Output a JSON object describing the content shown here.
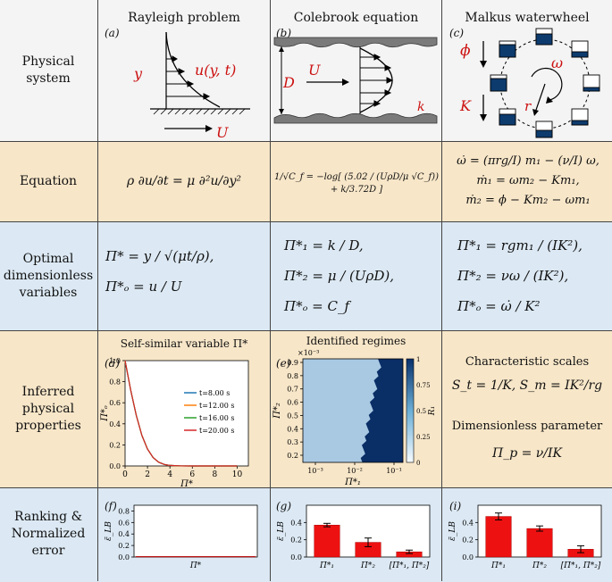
{
  "columns": [
    "Rayleigh problem",
    "Colebrook equation",
    "Malkus waterwheel"
  ],
  "rows": [
    "Physical system",
    "Equation",
    "Optimal dimensionless variables",
    "Inferred physical properties",
    "Ranking & Normalized error"
  ],
  "panel_labels": [
    "(a)",
    "(b)",
    "(c)",
    "(d)",
    "(e)",
    "(f)",
    "(g)",
    "(i)"
  ],
  "colors": {
    "top_bg": "#f4f4f4",
    "equation_bg": "#f7e6c8",
    "variables_bg": "#dce9f4",
    "inferred_bg": "#f7e6c8",
    "ranking_bg": "#dce9f4",
    "accent_red": "#cc1111"
  },
  "physical": {
    "rayleigh": {
      "y": "y",
      "u": "u(y, t)",
      "U": "U"
    },
    "colebrook": {
      "D": "D",
      "U": "U",
      "k": "k"
    },
    "malkus": {
      "phi": "ϕ",
      "omega": "ω",
      "K": "K",
      "r": "r"
    }
  },
  "equations": {
    "rayleigh": [
      "ρ ∂u/∂t = μ ∂²u/∂y²"
    ],
    "colebrook": [
      "1/√C_f = −log[ (5.02 / (UρD/μ √C_f)) + k/3.72D ]"
    ],
    "malkus": [
      "ω̇ = (πrg/I) m₁ − (ν/I) ω,",
      "ṁ₁ = ωm₂ − Km₁,",
      "ṁ₂ = ϕ − Km₂ − ωm₁"
    ]
  },
  "variables": {
    "rayleigh": [
      "Π* = y / √(μt/ρ),",
      "Π*ₒ = u / U"
    ],
    "colebrook": [
      "Π*₁ = k / D,",
      "Π*₂ = μ / (UρD),",
      "Π*ₒ = C_f"
    ],
    "malkus": [
      "Π*₁ = rgm₁ / (IK²),",
      "Π*₂ = νω / (IK²),",
      "Π*ₒ = ω̇ / K²"
    ]
  },
  "inferred": {
    "rayleigh_title": "Self-similar variable Π*",
    "colebrook_title": "Identified regimes",
    "colebrook_exp": "×10⁻³",
    "colebrook_cbar_label": "R₁",
    "colebrook_xlabel": "Π*₁",
    "colebrook_ylabel": "Π*₂",
    "malkus_title1": "Characteristic scales",
    "malkus_scales": "S_t = 1/K,  S_m = IK²/rg",
    "malkus_title2": "Dimensionless parameter",
    "malkus_param": "Π_p = ν/IK"
  },
  "chart_data": [
    {
      "type": "line",
      "xlabel": "Π*",
      "ylabel": "Π*ₒ",
      "xlim": [
        0,
        11
      ],
      "ylim": [
        0,
        1
      ],
      "xticks": [
        "0",
        "2",
        "4",
        "6",
        "8",
        "10"
      ],
      "yticks": [
        "0.0",
        "0.2",
        "0.4",
        "0.6",
        "0.8",
        "1.0"
      ],
      "legend_placement": "right",
      "series": [
        {
          "name": "t=8.00 s",
          "color": "#1f77b4"
        },
        {
          "name": "t=12.00 s",
          "color": "#ff7f0e"
        },
        {
          "name": "t=16.00 s",
          "color": "#2ca02c"
        },
        {
          "name": "t=20.00 s",
          "color": "#d62728"
        }
      ],
      "x": [
        0,
        0.5,
        1,
        1.5,
        2,
        2.5,
        3,
        3.5,
        4,
        5,
        6,
        8,
        10
      ],
      "y": [
        1.0,
        0.72,
        0.48,
        0.29,
        0.16,
        0.08,
        0.035,
        0.014,
        0.005,
        0.0005,
        0,
        0,
        0
      ]
    },
    {
      "type": "heatmap",
      "xlabel": "Π*₁",
      "ylabel": "Π*₂",
      "xticks": [
        "10⁻³",
        "10⁻²",
        "10⁻¹"
      ],
      "yticks": [
        "0.2",
        "0.3",
        "0.4",
        "0.5",
        "0.6",
        "0.7",
        "0.8",
        "0.9"
      ],
      "colorbar_ticks": [
        "0",
        "0.25",
        "0.5",
        "0.75",
        "1"
      ]
    },
    {
      "type": "bar",
      "ylabel": "ε̃_LB",
      "categories": [
        "Π*"
      ],
      "values": [
        0.01
      ],
      "yticks": [
        "0.0",
        "0.2",
        "0.4",
        "0.6",
        "0.8"
      ],
      "ylim": [
        0,
        0.9
      ]
    },
    {
      "type": "bar",
      "ylabel": "ε̃_LB",
      "categories": [
        "Π*₁",
        "Π*₂",
        "[Π*₁, Π*₂]"
      ],
      "values": [
        0.37,
        0.17,
        0.06
      ],
      "errors": [
        0.02,
        0.05,
        0.02
      ],
      "yticks": [
        "0.0",
        "0.2",
        "0.4"
      ],
      "ylim": [
        0,
        0.6
      ]
    },
    {
      "type": "bar",
      "ylabel": "ε̃_LB",
      "categories": [
        "Π*₁",
        "Π*₂",
        "[Π*₁, Π*₂]"
      ],
      "values": [
        0.47,
        0.33,
        0.09
      ],
      "errors": [
        0.04,
        0.03,
        0.04
      ],
      "yticks": [
        "0.0",
        "0.2",
        "0.4"
      ],
      "ylim": [
        0,
        0.6
      ]
    }
  ]
}
